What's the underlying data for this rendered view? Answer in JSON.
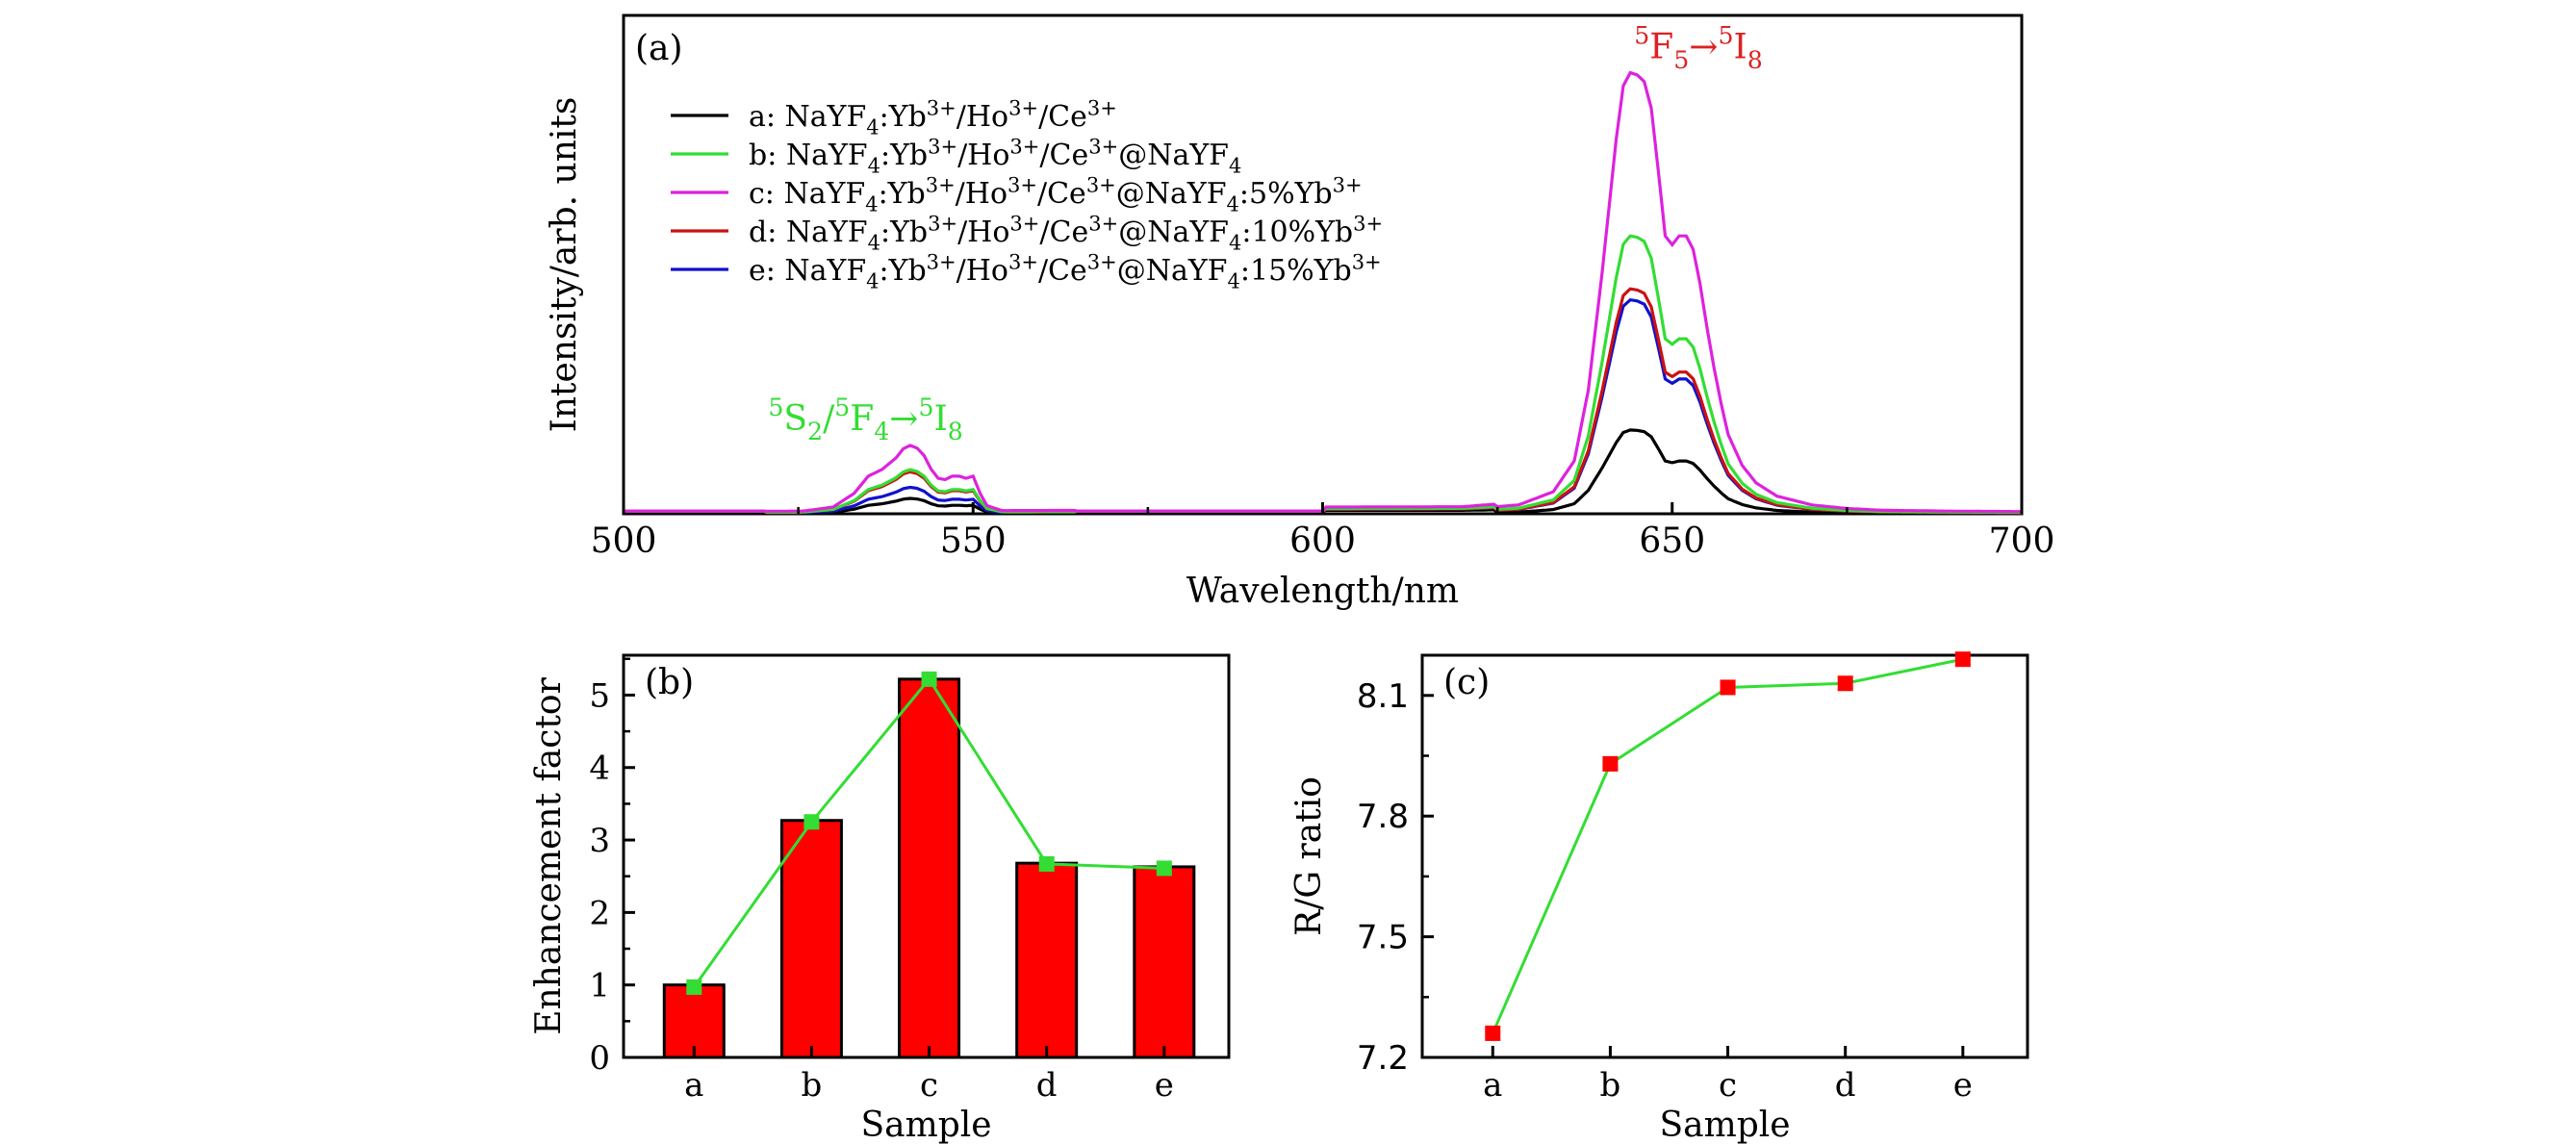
{
  "chart_data": [
    {
      "type": "line",
      "panel_label": "(a)",
      "xlabel": "Wavelength/nm",
      "ylabel": "Intensity/arb. units",
      "xlim": [
        500,
        700
      ],
      "ylim": [
        0,
        1.13
      ],
      "xticks": [
        500,
        550,
        600,
        650,
        700
      ],
      "grid": false,
      "legend_position": "top-left",
      "annotations": [
        {
          "id": "green",
          "text": "5S2/5F4→5I8",
          "at": [
            536,
            0.19
          ],
          "color": "#33dd33"
        },
        {
          "id": "red",
          "text": "5F5→5I8",
          "at": [
            651,
            1.05
          ],
          "color": "#dd2222"
        }
      ],
      "series": [
        {
          "name": "a: NaYF4:Yb3+/Ho3+/Ce3+",
          "color": "#000000",
          "scale": 0.19,
          "green_scale": 0.035
        },
        {
          "name": "b: NaYF4:Yb3+/Ho3+/Ce3+@NaYF4",
          "color": "#33dd33",
          "scale": 0.63,
          "green_scale": 0.1
        },
        {
          "name": "c: NaYF4:Yb3+/Ho3+/Ce3+@NaYF4:5%Yb3+",
          "color": "#dd22dd",
          "scale": 1.0,
          "green_scale": 0.155
        },
        {
          "name": "d: NaYF4:Yb3+/Ho3+/Ce3+@NaYF4:10%Yb3+",
          "color": "#cc1111",
          "scale": 0.51,
          "green_scale": 0.095
        },
        {
          "name": "e: NaYF4:Yb3+/Ho3+/Ce3+@NaYF4:15%Yb3+",
          "color": "#1111cc",
          "scale": 0.485,
          "green_scale": 0.06
        }
      ],
      "red_band_profile": {
        "x": [
          500,
          620,
          628,
          633,
          636,
          638,
          640,
          642,
          643,
          644,
          645,
          646,
          647,
          648,
          649,
          650,
          651,
          652,
          653,
          654,
          655,
          656,
          657,
          658,
          660,
          662,
          665,
          670,
          675,
          680,
          690,
          700
        ],
        "y": [
          0.005,
          0.01,
          0.02,
          0.05,
          0.12,
          0.28,
          0.55,
          0.85,
          0.97,
          1.0,
          0.995,
          0.98,
          0.92,
          0.78,
          0.63,
          0.61,
          0.63,
          0.63,
          0.6,
          0.52,
          0.42,
          0.33,
          0.25,
          0.18,
          0.11,
          0.07,
          0.04,
          0.02,
          0.012,
          0.008,
          0.006,
          0.005
        ]
      },
      "green_band_profile": {
        "x": [
          500,
          525,
          530,
          533,
          535,
          537,
          539,
          540,
          541,
          542,
          543,
          544,
          545,
          546,
          547,
          548,
          549,
          550,
          551,
          552,
          554,
          556,
          560,
          600
        ],
        "y": [
          0.02,
          0.03,
          0.1,
          0.3,
          0.55,
          0.65,
          0.82,
          0.95,
          1.0,
          0.96,
          0.85,
          0.65,
          0.52,
          0.5,
          0.55,
          0.55,
          0.52,
          0.55,
          0.3,
          0.12,
          0.05,
          0.03,
          0.02,
          0.01
        ]
      }
    },
    {
      "type": "bar",
      "panel_label": "(b)",
      "categories": [
        "a",
        "b",
        "c",
        "d",
        "e"
      ],
      "values": [
        1.0,
        3.27,
        5.22,
        2.68,
        2.63
      ],
      "line_values": [
        0.97,
        3.25,
        5.22,
        2.67,
        2.61
      ],
      "bar_color": "#ff0000",
      "line_color": "#33dd33",
      "xlabel": "Sample",
      "ylabel": "Enhancement factor",
      "ylim": [
        0,
        5.55
      ],
      "yticks": [
        0,
        1,
        2,
        3,
        4,
        5
      ],
      "grid": false
    },
    {
      "type": "line",
      "panel_label": "(c)",
      "categories": [
        "a",
        "b",
        "c",
        "d",
        "e"
      ],
      "values": [
        7.26,
        7.93,
        8.12,
        8.13,
        8.19
      ],
      "marker_color": "#ff0000",
      "line_color": "#33dd33",
      "xlabel": "Sample",
      "ylabel": "R/G ratio",
      "ylim": [
        7.2,
        8.2
      ],
      "yticks": [
        "7.2",
        "7.5",
        "7.8",
        "8.1"
      ],
      "grid": false
    }
  ]
}
